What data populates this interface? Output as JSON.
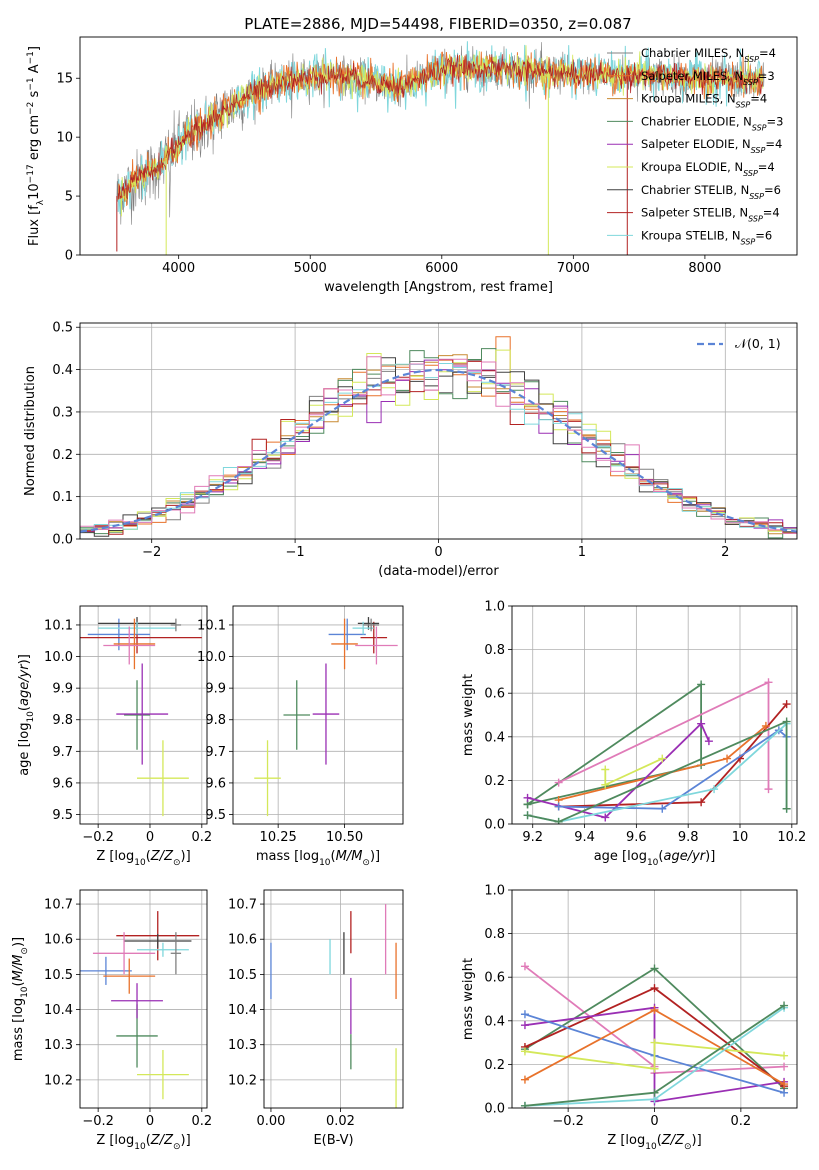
{
  "figure": {
    "title": "PLATE=2886, MJD=54498, FIBERID=0350, z=0.087"
  },
  "colors": {
    "Chabrier MILES": "#808080",
    "Salpeter MILES": "#e8722b",
    "Kroupa MILES": "#c88a32",
    "Chabrier ELODIE": "#4f8a5e",
    "Salpeter ELODIE": "#9a2fb4",
    "Kroupa ELODIE": "#d4e85a",
    "Chabrier STELIB": "#404040",
    "Salpeter STELIB": "#b22222",
    "Kroupa STELIB": "#7fd7dc",
    "normal": "#5b84d6",
    "pink": "#e07bb8",
    "blue": "#5b84d6"
  },
  "chart_data": [
    {
      "id": "spectrum",
      "type": "line",
      "xlabel": "wavelength [Angstrom, rest frame]",
      "ylabel": "Flux [f_λ 10^-17 erg cm^-2 s^-1 A^-1]",
      "xlim": [
        3250,
        8700
      ],
      "ylim": [
        0,
        18.5
      ],
      "xticks": [
        4000,
        5000,
        6000,
        7000,
        8000
      ],
      "yticks": [
        0,
        5,
        10,
        15
      ],
      "grid": false,
      "legend_position": "right",
      "legend": [
        {
          "label": "Chabrier MILES",
          "n": "4"
        },
        {
          "label": "Salpeter MILES",
          "n": "3"
        },
        {
          "label": "Kroupa MILES",
          "n": "4"
        },
        {
          "label": "Chabrier ELODIE",
          "n": "3"
        },
        {
          "label": "Salpeter ELODIE",
          "n": "4"
        },
        {
          "label": "Kroupa ELODIE",
          "n": "4"
        },
        {
          "label": "Chabrier STELIB",
          "n": "6"
        },
        {
          "label": "Salpeter STELIB",
          "n": "4"
        },
        {
          "label": "Kroupa STELIB",
          "n": "6"
        }
      ],
      "legend_nsub": "SSP",
      "continuum_knots": [
        [
          3530,
          5.0
        ],
        [
          3700,
          6.5
        ],
        [
          3850,
          7.5
        ],
        [
          4000,
          9.5
        ],
        [
          4200,
          11.0
        ],
        [
          4500,
          13.5
        ],
        [
          4800,
          14.8
        ],
        [
          5200,
          15.3
        ],
        [
          5700,
          14.2
        ],
        [
          6000,
          15.8
        ],
        [
          6500,
          15.8
        ],
        [
          7000,
          15.3
        ],
        [
          7500,
          15.3
        ],
        [
          8000,
          15.0
        ],
        [
          8450,
          14.8
        ]
      ],
      "spectrum_range": [
        3530,
        8450
      ]
    },
    {
      "id": "residuals",
      "type": "line",
      "xlabel": "(data-model)/error",
      "ylabel": "Normed distribution",
      "xlim": [
        -2.5,
        2.5
      ],
      "ylim": [
        0,
        0.51
      ],
      "xticks": [
        -2,
        -1,
        0,
        1,
        2
      ],
      "yticks": [
        0.0,
        0.1,
        0.2,
        0.3,
        0.4,
        0.5
      ],
      "grid": true,
      "legend_position": "top-right",
      "legend": [
        "𝒩(0, 1)"
      ],
      "bin_width": 0.1
    },
    {
      "id": "Z-age",
      "type": "scatter",
      "xlabel": "Z [log10(Z/Z☉)]",
      "ylabel": "age [log10(age/yr)]",
      "xlim": [
        -0.27,
        0.22
      ],
      "ylim": [
        9.47,
        10.16
      ],
      "xticks": [
        -0.2,
        0.0,
        0.2
      ],
      "yticks": [
        9.5,
        9.6,
        9.7,
        9.8,
        9.9,
        10.0,
        10.1
      ],
      "grid": true,
      "points": [
        {
          "color": "Chabrier ELODIE",
          "x": -0.05,
          "xerr": 0.05,
          "y": 9.815,
          "yerr": 0.11
        },
        {
          "color": "Salpeter ELODIE",
          "x": -0.03,
          "xerr": 0.1,
          "y": 9.818,
          "yerr": 0.16
        },
        {
          "color": "Kroupa ELODIE",
          "x": 0.05,
          "xerr": 0.1,
          "y": 9.615,
          "yerr": 0.12
        },
        {
          "color": "blue",
          "x": -0.12,
          "xerr": 0.12,
          "y": 10.07,
          "yerr": 0.05
        },
        {
          "color": "Salpeter STELIB",
          "x": -0.05,
          "xerr": 0.25,
          "y": 10.06,
          "yerr": 0.05
        },
        {
          "color": "Chabrier STELIB",
          "x": -0.05,
          "xerr": 0.15,
          "y": 10.105,
          "yerr": 0.02
        },
        {
          "color": "Kroupa STELIB",
          "x": -0.05,
          "xerr": 0.15,
          "y": 10.09,
          "yerr": 0.02
        },
        {
          "color": "Chabrier MILES",
          "x": 0.1,
          "xerr": 0.02,
          "y": 10.1,
          "yerr": 0.02
        },
        {
          "color": "Salpeter MILES",
          "x": -0.06,
          "xerr": 0.08,
          "y": 10.04,
          "yerr": 0.08
        },
        {
          "color": "pink",
          "x": -0.08,
          "xerr": 0.1,
          "y": 10.035,
          "yerr": 0.06
        }
      ]
    },
    {
      "id": "mass-age",
      "type": "scatter",
      "xlabel": "mass [log10(M/M☉)]",
      "ylabel": "",
      "xlim": [
        10.08,
        10.72
      ],
      "ylim": [
        9.47,
        10.16
      ],
      "xticks": [
        10.25,
        10.5
      ],
      "xticklabels": [
        "10.25",
        "10.50"
      ],
      "yticks": [
        9.5,
        9.6,
        9.7,
        9.8,
        9.9,
        10.0,
        10.1
      ],
      "grid": true,
      "points": [
        {
          "color": "Chabrier ELODIE",
          "x": 10.32,
          "xerr": 0.05,
          "y": 9.815,
          "yerr": 0.11
        },
        {
          "color": "Salpeter ELODIE",
          "x": 10.43,
          "xerr": 0.05,
          "y": 9.818,
          "yerr": 0.16
        },
        {
          "color": "Kroupa ELODIE",
          "x": 10.21,
          "xerr": 0.05,
          "y": 9.615,
          "yerr": 0.12
        },
        {
          "color": "blue",
          "x": 10.51,
          "xerr": 0.07,
          "y": 10.07,
          "yerr": 0.05
        },
        {
          "color": "Salpeter STELIB",
          "x": 10.61,
          "xerr": 0.05,
          "y": 10.06,
          "yerr": 0.05
        },
        {
          "color": "Chabrier STELIB",
          "x": 10.59,
          "xerr": 0.04,
          "y": 10.105,
          "yerr": 0.02
        },
        {
          "color": "Kroupa STELIB",
          "x": 10.57,
          "xerr": 0.04,
          "y": 10.09,
          "yerr": 0.02
        },
        {
          "color": "Chabrier MILES",
          "x": 10.6,
          "xerr": 0.03,
          "y": 10.1,
          "yerr": 0.02
        },
        {
          "color": "Salpeter MILES",
          "x": 10.5,
          "xerr": 0.05,
          "y": 10.04,
          "yerr": 0.08
        },
        {
          "color": "pink",
          "x": 10.62,
          "xerr": 0.08,
          "y": 10.035,
          "yerr": 0.06
        }
      ]
    },
    {
      "id": "age-massweight",
      "type": "line",
      "xlabel": "age [log10(age/yr)]",
      "ylabel": "mass weight",
      "xlim": [
        9.12,
        10.22
      ],
      "ylim": [
        0,
        1.0
      ],
      "xticks": [
        9.2,
        9.4,
        9.6,
        9.8,
        10.0,
        10.2
      ],
      "yticks": [
        0.0,
        0.2,
        0.4,
        0.6,
        0.8,
        1.0
      ],
      "grid": true,
      "series": [
        {
          "color": "Chabrier ELODIE",
          "x": [
            9.18,
            9.85,
            9.85,
            9.18
          ],
          "y": [
            0.09,
            0.64,
            0.27,
            0.09
          ]
        },
        {
          "color": "pink",
          "x": [
            9.3,
            10.11,
            10.11
          ],
          "y": [
            0.19,
            0.65,
            0.16
          ]
        },
        {
          "color": "Salpeter STELIB",
          "x": [
            9.3,
            9.85,
            10.0,
            10.18
          ],
          "y": [
            0.08,
            0.1,
            0.3,
            0.55
          ]
        },
        {
          "color": "Salpeter MILES",
          "x": [
            9.3,
            9.95,
            10.1
          ],
          "y": [
            0.11,
            0.3,
            0.45
          ]
        },
        {
          "color": "Salpeter ELODIE",
          "x": [
            9.18,
            9.48,
            9.85,
            9.88
          ],
          "y": [
            0.12,
            0.03,
            0.46,
            0.38
          ]
        },
        {
          "color": "Kroupa ELODIE",
          "x": [
            9.48,
            9.48,
            9.7
          ],
          "y": [
            0.25,
            0.18,
            0.3
          ]
        },
        {
          "color": "blue",
          "x": [
            9.3,
            9.7,
            10.15,
            10.18
          ],
          "y": [
            0.08,
            0.07,
            0.43,
            0.4
          ]
        },
        {
          "color": "Kroupa STELIB",
          "x": [
            9.18,
            9.3,
            9.9,
            10.18,
            10.18
          ],
          "y": [
            0.04,
            0.01,
            0.16,
            0.46,
            0.07
          ]
        },
        {
          "color": "Chabrier ELODIE",
          "x": [
            9.18,
            9.3,
            10.18,
            10.18
          ],
          "y": [
            0.04,
            0.01,
            0.47,
            0.07
          ]
        }
      ]
    },
    {
      "id": "Z-mass",
      "type": "scatter",
      "xlabel": "Z [log10(Z/Z☉)]",
      "ylabel": "mass [log10(M/M☉)]",
      "xlim": [
        -0.27,
        0.22
      ],
      "ylim": [
        10.12,
        10.74
      ],
      "xticks": [
        -0.2,
        0.0,
        0.2
      ],
      "yticks": [
        10.2,
        10.3,
        10.4,
        10.5,
        10.6,
        10.7
      ],
      "grid": true,
      "points": [
        {
          "color": "Chabrier ELODIE",
          "x": -0.05,
          "xerr": 0.08,
          "y": 10.325,
          "yerr": 0.09
        },
        {
          "color": "Salpeter ELODIE",
          "x": -0.05,
          "xerr": 0.1,
          "y": 10.425,
          "yerr": 0.05
        },
        {
          "color": "Kroupa ELODIE",
          "x": 0.05,
          "xerr": 0.1,
          "y": 10.215,
          "yerr": 0.07
        },
        {
          "color": "blue",
          "x": -0.17,
          "xerr": 0.1,
          "y": 10.51,
          "yerr": 0.04
        },
        {
          "color": "Salpeter STELIB",
          "x": 0.03,
          "xerr": 0.16,
          "y": 10.61,
          "yerr": 0.07
        },
        {
          "color": "Chabrier STELIB",
          "x": 0.03,
          "xerr": 0.13,
          "y": 10.595,
          "yerr": 0.02
        },
        {
          "color": "Kroupa STELIB",
          "x": 0.05,
          "xerr": 0.1,
          "y": 10.57,
          "yerr": 0.02
        },
        {
          "color": "Chabrier MILES",
          "x": 0.1,
          "xerr": 0.02,
          "y": 10.56,
          "yerr": 0.06
        },
        {
          "color": "Salpeter MILES",
          "x": -0.08,
          "xerr": 0.1,
          "y": 10.495,
          "yerr": 0.05
        },
        {
          "color": "pink",
          "x": -0.1,
          "xerr": 0.12,
          "y": 10.56,
          "yerr": 0.06
        }
      ]
    },
    {
      "id": "EBV-mass",
      "type": "scatter",
      "xlabel": "E(B-V)",
      "ylabel": "",
      "xlim": [
        -0.002,
        0.038
      ],
      "ylim": [
        10.12,
        10.74
      ],
      "xticks": [
        0.0,
        0.02
      ],
      "xticklabels": [
        "0.00",
        "0.02"
      ],
      "yticks": [
        10.2,
        10.3,
        10.4,
        10.5,
        10.6,
        10.7
      ],
      "grid": true,
      "points": [
        {
          "color": "blue",
          "x": 0.0,
          "xerr": 0,
          "y": 10.51,
          "yerr": 0.08
        },
        {
          "color": "Kroupa STELIB",
          "x": 0.017,
          "xerr": 0,
          "y": 10.55,
          "yerr": 0.05
        },
        {
          "color": "Chabrier STELIB",
          "x": 0.021,
          "xerr": 0,
          "y": 10.56,
          "yerr": 0.06
        },
        {
          "color": "Salpeter STELIB",
          "x": 0.023,
          "xerr": 0,
          "y": 10.62,
          "yerr": 0.06
        },
        {
          "color": "Salpeter ELODIE",
          "x": 0.023,
          "xerr": 0,
          "y": 10.41,
          "yerr": 0.08
        },
        {
          "color": "Chabrier ELODIE",
          "x": 0.023,
          "xerr": 0,
          "y": 10.28,
          "yerr": 0.05
        },
        {
          "color": "pink",
          "x": 0.033,
          "xerr": 0,
          "y": 10.6,
          "yerr": 0.1
        },
        {
          "color": "Salpeter MILES",
          "x": 0.036,
          "xerr": 0,
          "y": 10.51,
          "yerr": 0.08
        },
        {
          "color": "Kroupa ELODIE",
          "x": 0.036,
          "xerr": 0,
          "y": 10.2,
          "yerr": 0.09
        }
      ]
    },
    {
      "id": "Z-massweight",
      "type": "line",
      "xlabel": "Z [log10(Z/Z☉)]",
      "ylabel": "mass weight",
      "xlim": [
        -0.33,
        0.33
      ],
      "ylim": [
        0,
        1.0
      ],
      "xticks": [
        -0.2,
        0.0,
        0.2
      ],
      "yticks": [
        0.0,
        0.2,
        0.4,
        0.6,
        0.8,
        1.0
      ],
      "grid": true,
      "series": [
        {
          "color": "pink",
          "x": [
            -0.3,
            0.0,
            0.0,
            0.3
          ],
          "y": [
            0.65,
            0.19,
            0.16,
            0.19
          ]
        },
        {
          "color": "Chabrier ELODIE",
          "x": [
            -0.3,
            0.0,
            0.3
          ],
          "y": [
            0.27,
            0.64,
            0.09
          ]
        },
        {
          "color": "Salpeter STELIB",
          "x": [
            -0.3,
            0.0,
            0.3
          ],
          "y": [
            0.28,
            0.55,
            0.1
          ]
        },
        {
          "color": "Salpeter ELODIE",
          "x": [
            -0.3,
            0.0,
            0.0,
            0.3
          ],
          "y": [
            0.38,
            0.46,
            0.03,
            0.12
          ]
        },
        {
          "color": "blue",
          "x": [
            -0.3,
            0.0,
            0.3
          ],
          "y": [
            0.43,
            0.24,
            0.07
          ]
        },
        {
          "color": "Kroupa ELODIE",
          "x": [
            -0.3,
            0.0,
            0.0,
            0.3
          ],
          "y": [
            0.26,
            0.18,
            0.3,
            0.24
          ]
        },
        {
          "color": "Salpeter MILES",
          "x": [
            -0.3,
            0.0,
            0.3
          ],
          "y": [
            0.13,
            0.45,
            0.11
          ]
        },
        {
          "color": "Kroupa STELIB",
          "x": [
            -0.3,
            0.0,
            0.3
          ],
          "y": [
            0.01,
            0.04,
            0.46
          ]
        },
        {
          "color": "Chabrier ELODIE",
          "x": [
            -0.3,
            0.0,
            0.3
          ],
          "y": [
            0.01,
            0.07,
            0.47
          ]
        }
      ]
    }
  ]
}
